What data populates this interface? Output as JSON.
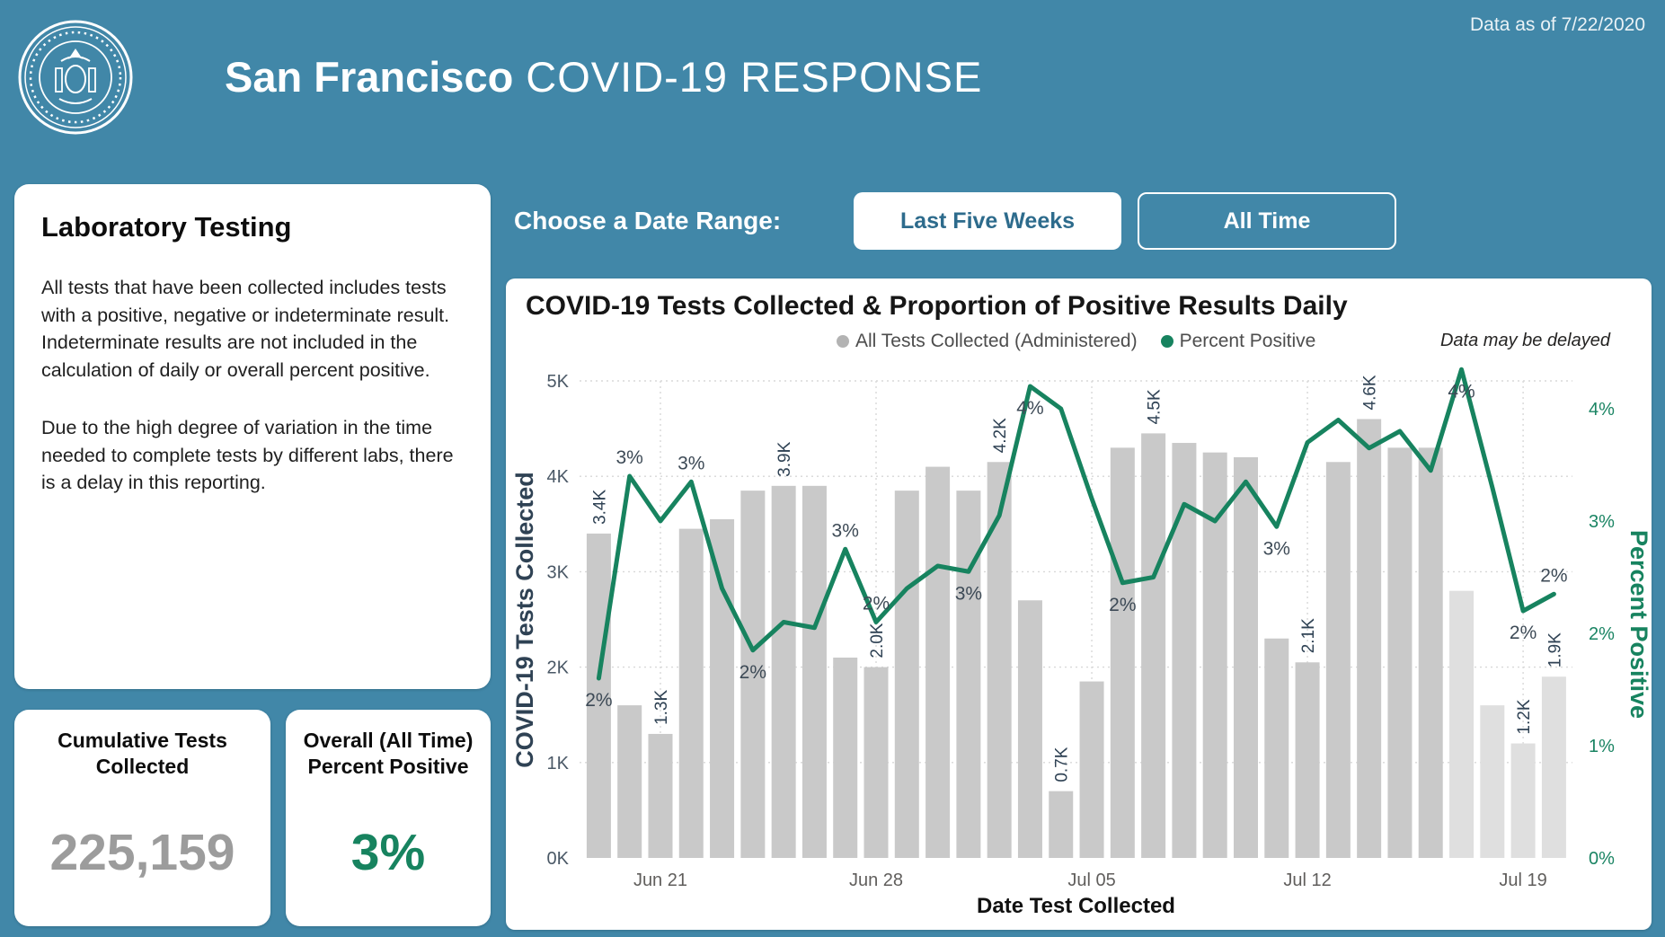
{
  "header": {
    "data_as_of": "Data as of 7/22/2020",
    "title_bold": "San Francisco",
    "title_rest": "COVID-19 RESPONSE"
  },
  "left_panel": {
    "title": "Laboratory Testing",
    "paragraph1": "All tests that have been collected includes tests with a positive, negative or indeterminate result. Indeterminate results are not included in the calculation of daily or overall percent positive.",
    "paragraph2": "Due to the high degree of variation in the time needed to complete tests by different labs, there is a delay in this reporting."
  },
  "stat_cards": [
    {
      "title": "Cumulative Tests Collected",
      "value": "225,159",
      "value_color": "#9C9C9C"
    },
    {
      "title": "Overall (All Time) Percent Positive",
      "value": "3%",
      "value_color": "#17835F"
    }
  ],
  "date_range": {
    "label": "Choose a Date Range:",
    "buttons": [
      {
        "label": "Last Five Weeks",
        "selected": true
      },
      {
        "label": "All Time",
        "selected": false
      }
    ]
  },
  "chart": {
    "title": "COVID-19 Tests Collected & Proportion of Positive Results Daily",
    "legend": [
      {
        "label": "All Tests Collected (Administered)",
        "color": "#B3B3B3"
      },
      {
        "label": "Percent Positive",
        "color": "#17835F"
      }
    ],
    "note": "Data may be delayed"
  },
  "colors": {
    "page_bg": "#4187A8",
    "green": "#17835F",
    "bar_gray": "#C9C9C9",
    "bar_light": "#DFDFDF"
  },
  "chart_data": {
    "type": "bar+line combo",
    "title": "COVID-19 Tests Collected & Proportion of Positive Results Daily",
    "xlabel": "Date Test Collected",
    "ylabel_left": "COVID-19 Tests Collected",
    "ylabel_right": "Percent Positive",
    "ylim_left": [
      0,
      5000
    ],
    "ylim_right": [
      0,
      4
    ],
    "y_ticks_left": [
      "0K",
      "1K",
      "2K",
      "3K",
      "4K",
      "5K"
    ],
    "y_ticks_right": [
      "0%",
      "1%",
      "2%",
      "3%",
      "4%"
    ],
    "grid": "dotted horizontal and weekly vertical",
    "legend_position": "top center",
    "x": [
      "Jun 19",
      "Jun 20",
      "Jun 21",
      "Jun 22",
      "Jun 23",
      "Jun 24",
      "Jun 25",
      "Jun 26",
      "Jun 27",
      "Jun 28",
      "Jun 29",
      "Jun 30",
      "Jul 01",
      "Jul 02",
      "Jul 03",
      "Jul 04",
      "Jul 05",
      "Jul 06",
      "Jul 07",
      "Jul 08",
      "Jul 09",
      "Jul 10",
      "Jul 11",
      "Jul 12",
      "Jul 13",
      "Jul 14",
      "Jul 15",
      "Jul 16",
      "Jul 17",
      "Jul 18",
      "Jul 19",
      "Jul 20"
    ],
    "x_ticks": [
      "Jun 21",
      "Jun 28",
      "Jul 05",
      "Jul 12",
      "Jul 19"
    ],
    "week_tick_indices": [
      2,
      9,
      16,
      23,
      30
    ],
    "series": [
      {
        "name": "All Tests Collected (Administered)",
        "type": "bar",
        "unit": "tests",
        "values": [
          3400,
          1600,
          1300,
          3450,
          3550,
          3850,
          3900,
          3900,
          2100,
          2000,
          3850,
          4100,
          3850,
          4150,
          2700,
          700,
          1850,
          4300,
          4450,
          4350,
          4250,
          4200,
          2300,
          2050,
          4150,
          4600,
          4300,
          4300,
          2800,
          1600,
          1200,
          1900
        ]
      },
      {
        "name": "Percent Positive",
        "type": "line",
        "unit": "%",
        "values": [
          1.6,
          3.4,
          3.0,
          3.35,
          2.4,
          1.85,
          2.1,
          2.05,
          2.75,
          2.1,
          2.4,
          2.6,
          2.55,
          3.05,
          4.2,
          4.0,
          3.2,
          2.45,
          2.5,
          3.15,
          3.0,
          3.35,
          2.95,
          3.7,
          3.9,
          3.65,
          3.8,
          3.45,
          4.35,
          3.3,
          2.2,
          2.35
        ]
      }
    ],
    "light_bar_start_index": 28,
    "bar_labels": [
      {
        "i": 0,
        "t": "3.4K"
      },
      {
        "i": 2,
        "t": "1.3K"
      },
      {
        "i": 6,
        "t": "3.9K"
      },
      {
        "i": 9,
        "t": "2.0K"
      },
      {
        "i": 13,
        "t": "4.2K"
      },
      {
        "i": 15,
        "t": "0.7K"
      },
      {
        "i": 18,
        "t": "4.5K"
      },
      {
        "i": 23,
        "t": "2.1K"
      },
      {
        "i": 25,
        "t": "4.6K"
      },
      {
        "i": 30,
        "t": "1.2K"
      },
      {
        "i": 31,
        "t": "1.9K"
      }
    ],
    "line_labels": [
      {
        "i": 0,
        "t": "2%",
        "pos": "below"
      },
      {
        "i": 1,
        "t": "3%",
        "pos": "above"
      },
      {
        "i": 3,
        "t": "3%",
        "pos": "above"
      },
      {
        "i": 5,
        "t": "2%",
        "pos": "below"
      },
      {
        "i": 8,
        "t": "3%",
        "pos": "above"
      },
      {
        "i": 9,
        "t": "2%",
        "pos": "above"
      },
      {
        "i": 12,
        "t": "3%",
        "pos": "below"
      },
      {
        "i": 14,
        "t": "4%",
        "pos": "below"
      },
      {
        "i": 17,
        "t": "2%",
        "pos": "below"
      },
      {
        "i": 22,
        "t": "3%",
        "pos": "below"
      },
      {
        "i": 28,
        "t": "4%",
        "pos": "below"
      },
      {
        "i": 30,
        "t": "2%",
        "pos": "below"
      },
      {
        "i": 31,
        "t": "2%",
        "pos": "above"
      }
    ]
  }
}
